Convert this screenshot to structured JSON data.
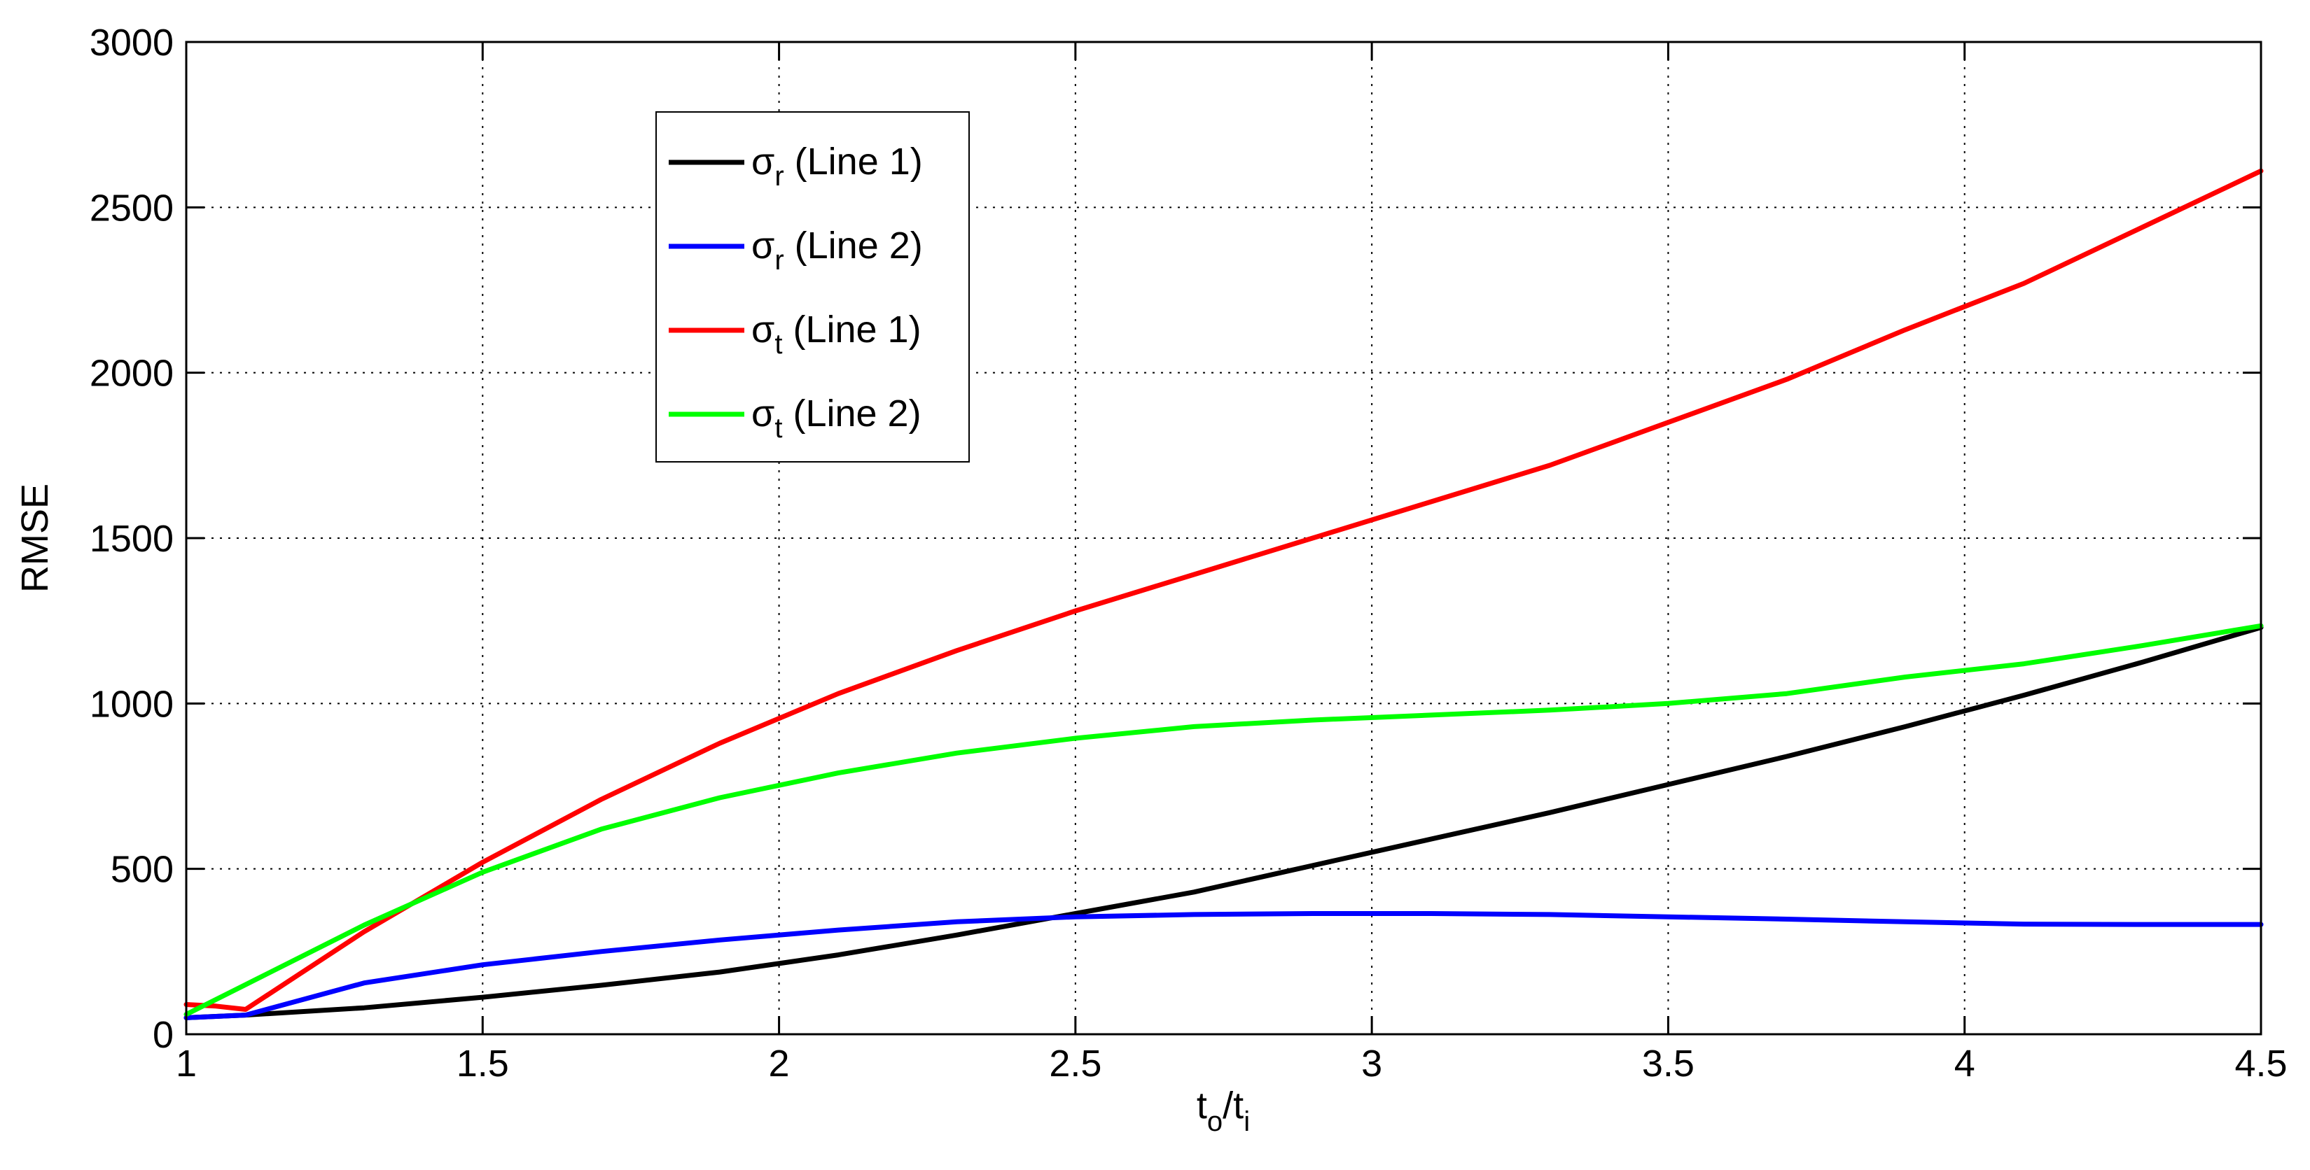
{
  "chart_data": {
    "type": "line",
    "title": "",
    "xlabel": {
      "base": "t",
      "sub1": "o",
      "sep": "/t",
      "sub2": "i"
    },
    "ylabel": "RMSE",
    "xlim": [
      1,
      4.5
    ],
    "ylim": [
      0,
      3000
    ],
    "xticks": [
      1,
      1.5,
      2,
      2.5,
      3,
      3.5,
      4,
      4.5
    ],
    "xtick_labels": [
      "1",
      "1.5",
      "2",
      "2.5",
      "3",
      "3.5",
      "4",
      "4.5"
    ],
    "yticks": [
      0,
      500,
      1000,
      1500,
      2000,
      2500,
      3000
    ],
    "ytick_labels": [
      "0",
      "500",
      "1000",
      "1500",
      "2000",
      "2500",
      "3000"
    ],
    "grid": true,
    "legend_position": "upper-left (inside axes)",
    "series": [
      {
        "name": "σr (Line 1)",
        "symbol": "σ",
        "subscript": "r",
        "suffix": " (Line 1)",
        "color": "#000000",
        "x": [
          1,
          1.1,
          1.3,
          1.5,
          1.7,
          1.9,
          2.1,
          2.3,
          2.5,
          2.7,
          2.9,
          3.1,
          3.3,
          3.5,
          3.7,
          3.9,
          4.1,
          4.3,
          4.5
        ],
        "y": [
          50,
          58,
          80,
          112,
          148,
          188,
          240,
          300,
          365,
          430,
          510,
          590,
          670,
          755,
          840,
          930,
          1025,
          1125,
          1230
        ]
      },
      {
        "name": "σr (Line 2)",
        "symbol": "σ",
        "subscript": "r",
        "suffix": " (Line 2)",
        "color": "#0000ff",
        "x": [
          1,
          1.1,
          1.3,
          1.5,
          1.7,
          1.9,
          2.1,
          2.3,
          2.5,
          2.7,
          2.9,
          3.1,
          3.3,
          3.5,
          3.7,
          3.9,
          4.1,
          4.3,
          4.5
        ],
        "y": [
          50,
          58,
          155,
          210,
          250,
          285,
          315,
          340,
          355,
          362,
          365,
          365,
          362,
          355,
          348,
          340,
          333,
          332,
          332
        ]
      },
      {
        "name": "σt (Line 1)",
        "symbol": "σ",
        "subscript": "t",
        "suffix": " (Line 1)",
        "color": "#ff0000",
        "x": [
          1,
          1.05,
          1.1,
          1.3,
          1.5,
          1.7,
          1.9,
          2.1,
          2.3,
          2.5,
          2.7,
          2.9,
          3.1,
          3.3,
          3.5,
          3.7,
          3.9,
          4.1,
          4.3,
          4.5
        ],
        "y": [
          90,
          85,
          75,
          310,
          520,
          710,
          880,
          1030,
          1160,
          1280,
          1390,
          1500,
          1610,
          1720,
          1850,
          1980,
          2130,
          2270,
          2440,
          2610
        ]
      },
      {
        "name": "σt (Line 2)",
        "symbol": "σ",
        "subscript": "t",
        "suffix": " (Line 2)",
        "color": "#00ff00",
        "x": [
          1,
          1.1,
          1.3,
          1.5,
          1.7,
          1.9,
          2.1,
          2.3,
          2.5,
          2.7,
          2.9,
          3.1,
          3.3,
          3.5,
          3.7,
          3.9,
          4.1,
          4.3,
          4.5
        ],
        "y": [
          60,
          150,
          330,
          490,
          620,
          715,
          790,
          850,
          895,
          930,
          950,
          965,
          980,
          1000,
          1030,
          1080,
          1120,
          1175,
          1235
        ]
      }
    ]
  }
}
